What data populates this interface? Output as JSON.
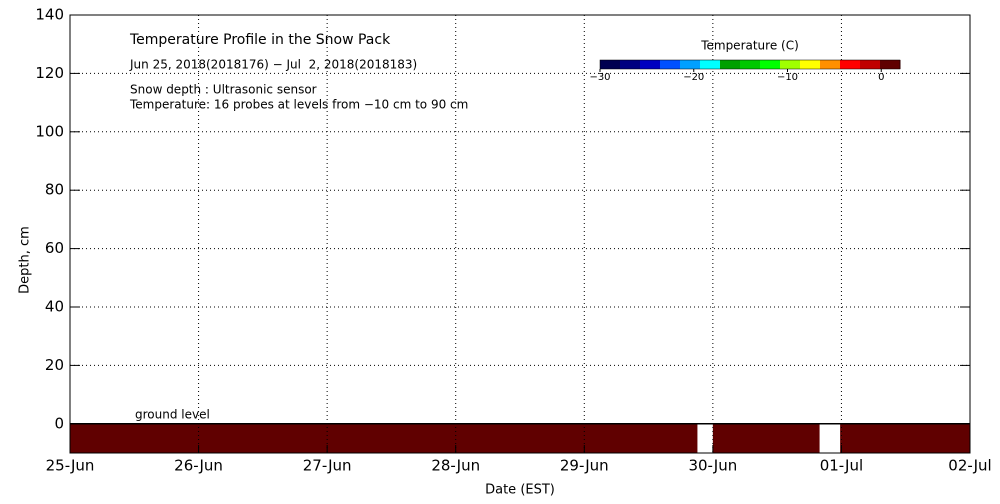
{
  "chart_data": {
    "type": "heatmap",
    "title": "Temperature Profile in the Snow Pack",
    "subtitle": "Jun 25, 2018(2018176) − Jul  2, 2018(2018183)",
    "notes": [
      "Snow depth : Ultrasonic sensor",
      "Temperature: 16 probes at levels from −10 cm to 90 cm"
    ],
    "annotation": "ground level",
    "xlabel": "Date (EST)",
    "ylabel": "Depth, cm",
    "xlim": [
      0,
      7
    ],
    "xticks": [
      {
        "value": 0,
        "label": "25-Jun"
      },
      {
        "value": 1,
        "label": "26-Jun"
      },
      {
        "value": 2,
        "label": "27-Jun"
      },
      {
        "value": 3,
        "label": "28-Jun"
      },
      {
        "value": 4,
        "label": "29-Jun"
      },
      {
        "value": 5,
        "label": "30-Jun"
      },
      {
        "value": 6,
        "label": "01-Jul"
      },
      {
        "value": 7,
        "label": "02-Jul"
      }
    ],
    "ylim": [
      -10,
      140
    ],
    "yticks": [
      0,
      20,
      40,
      60,
      80,
      100,
      120,
      140
    ],
    "grid": true,
    "colorbar": {
      "label": "Temperature (C)",
      "clim": [
        -30,
        2
      ],
      "ticks": [
        {
          "value": -30,
          "label": "−30"
        },
        {
          "value": -20,
          "label": "−20"
        },
        {
          "value": -10,
          "label": "−10"
        },
        0
      ],
      "colors": [
        "#000050",
        "#000080",
        "#0000c0",
        "#0050ff",
        "#00a0ff",
        "#00ffff",
        "#00a000",
        "#00c800",
        "#00ff00",
        "#a0ff00",
        "#ffff00",
        "#ff9000",
        "#ff0000",
        "#c00000",
        "#600000"
      ]
    },
    "cells": [
      {
        "x": [
          0,
          4.88
        ],
        "y": [
          -10,
          0
        ],
        "value": 2
      },
      {
        "x": [
          5.0,
          5.83
        ],
        "y": [
          -10,
          0
        ],
        "value": 2
      },
      {
        "x": [
          5.99,
          7
        ],
        "y": [
          -10,
          0
        ],
        "value": 2
      }
    ]
  }
}
